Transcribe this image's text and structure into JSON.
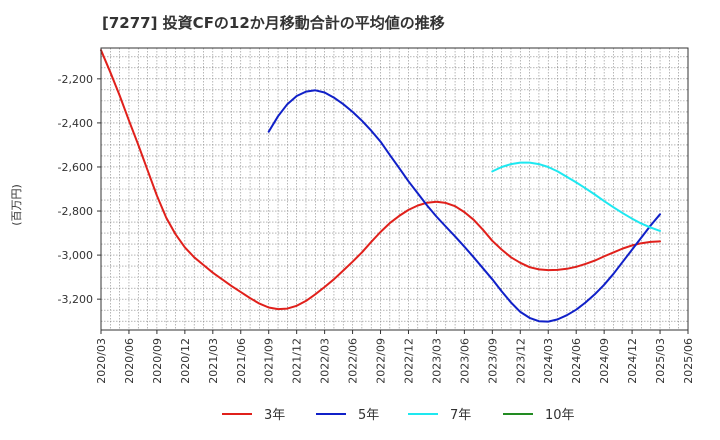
{
  "chart_data": {
    "type": "line",
    "title": "[7277]  投資CFの12か月移動合計の平均値の推移",
    "ylabel": "(百万円)",
    "xlabel": "",
    "ylim": [
      -3340,
      -2060
    ],
    "yticks": [
      -2200,
      -2400,
      -2600,
      -2800,
      -3000,
      -3200
    ],
    "ytick_labels": [
      "-2,200",
      "-2,400",
      "-2,600",
      "-2,800",
      "-3,000",
      "-3,200"
    ],
    "xlim": [
      "2020/03",
      "2025/06"
    ],
    "xticks": [
      "2020/03",
      "2020/06",
      "2020/09",
      "2020/12",
      "2021/03",
      "2021/06",
      "2021/09",
      "2021/12",
      "2022/03",
      "2022/06",
      "2022/09",
      "2022/12",
      "2023/03",
      "2023/06",
      "2023/09",
      "2023/12",
      "2024/03",
      "2024/06",
      "2024/09",
      "2024/12",
      "2025/03",
      "2025/06"
    ],
    "grid": true,
    "legend_position": "bottom",
    "series": [
      {
        "name": "3年",
        "color": "#e0201b",
        "points": [
          [
            "2020/03",
            -2070
          ],
          [
            "2020/04",
            -2170
          ],
          [
            "2020/05",
            -2275
          ],
          [
            "2020/06",
            -2390
          ],
          [
            "2020/07",
            -2500
          ],
          [
            "2020/08",
            -2615
          ],
          [
            "2020/09",
            -2730
          ],
          [
            "2020/10",
            -2830
          ],
          [
            "2020/11",
            -2905
          ],
          [
            "2020/12",
            -2965
          ],
          [
            "2021/01",
            -3010
          ],
          [
            "2021/02",
            -3045
          ],
          [
            "2021/03",
            -3080
          ],
          [
            "2021/04",
            -3110
          ],
          [
            "2021/05",
            -3140
          ],
          [
            "2021/06",
            -3168
          ],
          [
            "2021/07",
            -3195
          ],
          [
            "2021/08",
            -3220
          ],
          [
            "2021/09",
            -3238
          ],
          [
            "2021/10",
            -3245
          ],
          [
            "2021/11",
            -3243
          ],
          [
            "2021/12",
            -3230
          ],
          [
            "2022/01",
            -3208
          ],
          [
            "2022/02",
            -3178
          ],
          [
            "2022/03",
            -3145
          ],
          [
            "2022/04",
            -3110
          ],
          [
            "2022/05",
            -3070
          ],
          [
            "2022/06",
            -3030
          ],
          [
            "2022/07",
            -2988
          ],
          [
            "2022/08",
            -2940
          ],
          [
            "2022/09",
            -2895
          ],
          [
            "2022/10",
            -2855
          ],
          [
            "2022/11",
            -2822
          ],
          [
            "2022/12",
            -2795
          ],
          [
            "2023/01",
            -2775
          ],
          [
            "2023/02",
            -2762
          ],
          [
            "2023/03",
            -2758
          ],
          [
            "2023/04",
            -2763
          ],
          [
            "2023/05",
            -2778
          ],
          [
            "2023/06",
            -2805
          ],
          [
            "2023/07",
            -2840
          ],
          [
            "2023/08",
            -2885
          ],
          [
            "2023/09",
            -2935
          ],
          [
            "2023/10",
            -2975
          ],
          [
            "2023/11",
            -3010
          ],
          [
            "2023/12",
            -3035
          ],
          [
            "2024/01",
            -3055
          ],
          [
            "2024/02",
            -3065
          ],
          [
            "2024/03",
            -3068
          ],
          [
            "2024/04",
            -3067
          ],
          [
            "2024/05",
            -3062
          ],
          [
            "2024/06",
            -3053
          ],
          [
            "2024/07",
            -3040
          ],
          [
            "2024/08",
            -3025
          ],
          [
            "2024/09",
            -3006
          ],
          [
            "2024/10",
            -2988
          ],
          [
            "2024/11",
            -2970
          ],
          [
            "2024/12",
            -2956
          ],
          [
            "2025/01",
            -2946
          ],
          [
            "2025/02",
            -2940
          ],
          [
            "2025/03",
            -2938
          ]
        ]
      },
      {
        "name": "5年",
        "color": "#1020c8",
        "points": [
          [
            "2021/09",
            -2440
          ],
          [
            "2021/10",
            -2370
          ],
          [
            "2021/11",
            -2315
          ],
          [
            "2021/12",
            -2278
          ],
          [
            "2022/01",
            -2258
          ],
          [
            "2022/02",
            -2252
          ],
          [
            "2022/03",
            -2262
          ],
          [
            "2022/04",
            -2285
          ],
          [
            "2022/05",
            -2315
          ],
          [
            "2022/06",
            -2350
          ],
          [
            "2022/07",
            -2390
          ],
          [
            "2022/08",
            -2435
          ],
          [
            "2022/09",
            -2485
          ],
          [
            "2022/10",
            -2545
          ],
          [
            "2022/11",
            -2605
          ],
          [
            "2022/12",
            -2665
          ],
          [
            "2023/01",
            -2720
          ],
          [
            "2023/02",
            -2775
          ],
          [
            "2023/03",
            -2825
          ],
          [
            "2023/04",
            -2870
          ],
          [
            "2023/05",
            -2915
          ],
          [
            "2023/06",
            -2962
          ],
          [
            "2023/07",
            -3010
          ],
          [
            "2023/08",
            -3060
          ],
          [
            "2023/09",
            -3110
          ],
          [
            "2023/10",
            -3165
          ],
          [
            "2023/11",
            -3215
          ],
          [
            "2023/12",
            -3258
          ],
          [
            "2024/01",
            -3285
          ],
          [
            "2024/02",
            -3300
          ],
          [
            "2024/03",
            -3302
          ],
          [
            "2024/04",
            -3292
          ],
          [
            "2024/05",
            -3273
          ],
          [
            "2024/06",
            -3248
          ],
          [
            "2024/07",
            -3215
          ],
          [
            "2024/08",
            -3178
          ],
          [
            "2024/09",
            -3135
          ],
          [
            "2024/10",
            -3085
          ],
          [
            "2024/11",
            -3030
          ],
          [
            "2024/12",
            -2975
          ],
          [
            "2025/01",
            -2920
          ],
          [
            "2025/02",
            -2865
          ],
          [
            "2025/03",
            -2815
          ]
        ]
      },
      {
        "name": "7年",
        "color": "#1ee8f0",
        "points": [
          [
            "2023/09",
            -2620
          ],
          [
            "2023/10",
            -2600
          ],
          [
            "2023/11",
            -2587
          ],
          [
            "2023/12",
            -2580
          ],
          [
            "2024/01",
            -2580
          ],
          [
            "2024/02",
            -2587
          ],
          [
            "2024/03",
            -2600
          ],
          [
            "2024/04",
            -2620
          ],
          [
            "2024/05",
            -2645
          ],
          [
            "2024/06",
            -2670
          ],
          [
            "2024/07",
            -2697
          ],
          [
            "2024/08",
            -2725
          ],
          [
            "2024/09",
            -2755
          ],
          [
            "2024/10",
            -2783
          ],
          [
            "2024/11",
            -2810
          ],
          [
            "2024/12",
            -2835
          ],
          [
            "2025/01",
            -2857
          ],
          [
            "2025/02",
            -2875
          ],
          [
            "2025/03",
            -2890
          ]
        ]
      },
      {
        "name": "10年",
        "color": "#228b22",
        "points": []
      }
    ]
  }
}
